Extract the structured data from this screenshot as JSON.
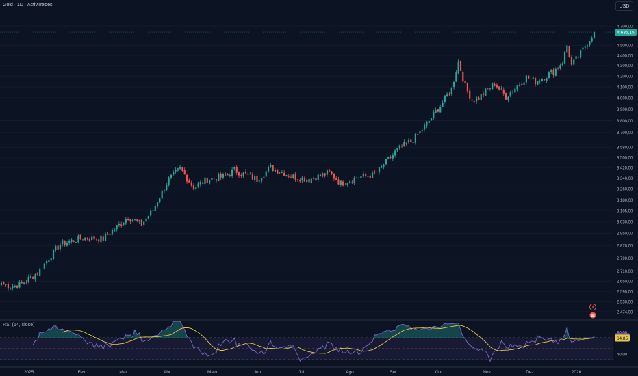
{
  "header": {
    "title": "Gold · 1D · ActivTrades",
    "currency_button": "USD"
  },
  "price_tag": "4.635,15",
  "icons": {
    "flash": "lightning-icon",
    "calendar": "calendar-flag-icon"
  },
  "colors": {
    "up": "#26a69a",
    "down": "#ef5350",
    "rsi_line": "#7e6bc9",
    "rsi_ma": "#e6c84a",
    "background": "#0c1322",
    "price_tag": "#26a69a",
    "rsi_tag": "#e6c84a",
    "rsi_tag2": "#7e57c2"
  },
  "rsi": {
    "label": "RSI (14, close)",
    "value_tag": "64,85",
    "value_tag2": "71,41",
    "axis_labels": [
      "80,00",
      "40,00"
    ]
  },
  "chart_data": {
    "type": "candlestick",
    "x_labels": [
      "2025",
      "Fev",
      "Mar",
      "Abr",
      "Maio",
      "Jun",
      "Jul",
      "Ago",
      "Set",
      "Out",
      "Nov",
      "Dez",
      "2026"
    ],
    "y_tick_labels": [
      "4.700,00",
      "4.500,00",
      "4.400,00",
      "4.300,00",
      "4.200,00",
      "4.100,00",
      "4.000,00",
      "3.900,00",
      "3.800,00",
      "3.700,00",
      "3.580,00",
      "3.500,00",
      "3.420,00",
      "3.340,00",
      "3.260,00",
      "3.180,00",
      "3.105,00",
      "3.030,00",
      "2.950,00",
      "2.870,00",
      "2.790,00",
      "2.710,00",
      "2.650,00",
      "2.590,00",
      "2.530,00",
      "2.474,00"
    ],
    "y_scale": "log",
    "close_anchors": [
      [
        0,
        2640
      ],
      [
        4,
        2615
      ],
      [
        9,
        2635
      ],
      [
        16,
        2700
      ],
      [
        26,
        2880
      ],
      [
        36,
        2920
      ],
      [
        45,
        2915
      ],
      [
        56,
        3060
      ],
      [
        62,
        3010
      ],
      [
        67,
        3110
      ],
      [
        74,
        3330
      ],
      [
        79,
        3410
      ],
      [
        85,
        3270
      ],
      [
        91,
        3330
      ],
      [
        98,
        3350
      ],
      [
        103,
        3400
      ],
      [
        113,
        3330
      ],
      [
        119,
        3420
      ],
      [
        129,
        3350
      ],
      [
        136,
        3330
      ],
      [
        145,
        3380
      ],
      [
        150,
        3300
      ],
      [
        158,
        3350
      ],
      [
        164,
        3360
      ],
      [
        167,
        3400
      ],
      [
        175,
        3560
      ],
      [
        182,
        3640
      ],
      [
        188,
        3770
      ],
      [
        194,
        3930
      ],
      [
        199,
        4080
      ],
      [
        202,
        4340
      ],
      [
        205,
        4100
      ],
      [
        208,
        3980
      ],
      [
        211,
        4000
      ],
      [
        218,
        4130
      ],
      [
        223,
        4010
      ],
      [
        232,
        4190
      ],
      [
        236,
        4150
      ],
      [
        244,
        4240
      ],
      [
        248,
        4340
      ],
      [
        250,
        4500
      ],
      [
        252,
        4300
      ],
      [
        256,
        4420
      ],
      [
        262,
        4635
      ]
    ],
    "last_close": 4635.15,
    "rsi_range": [
      20,
      100
    ],
    "rsi_levels": [
      30,
      50,
      70
    ],
    "grid": true,
    "legend": "none"
  }
}
